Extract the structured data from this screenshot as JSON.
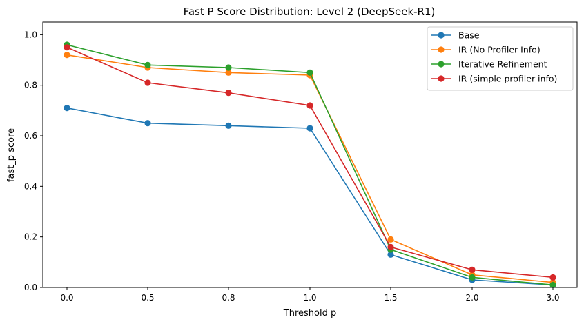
{
  "chart_data": {
    "type": "line",
    "title": "Fast P Score Distribution: Level 2 (DeepSeek-R1)",
    "xlabel": "Threshold p",
    "ylabel": "fast_p score",
    "categories": [
      "0.0",
      "0.5",
      "0.8",
      "1.0",
      "1.5",
      "2.0",
      "3.0"
    ],
    "ylim": [
      0,
      1.05
    ],
    "yticks": [
      "0.0",
      "0.2",
      "0.4",
      "0.6",
      "0.8",
      "1.0"
    ],
    "grid": false,
    "legend_position": "top-right",
    "series": [
      {
        "name": "Base",
        "color": "#1f77b4",
        "values": [
          0.71,
          0.65,
          0.64,
          0.63,
          0.13,
          0.03,
          0.01
        ]
      },
      {
        "name": "IR (No Profiler Info)",
        "color": "#ff7f0e",
        "values": [
          0.92,
          0.87,
          0.85,
          0.84,
          0.19,
          0.05,
          0.02
        ]
      },
      {
        "name": "Iterative Refinement",
        "color": "#2ca02c",
        "values": [
          0.96,
          0.88,
          0.87,
          0.85,
          0.15,
          0.04,
          0.01
        ]
      },
      {
        "name": "IR (simple profiler info)",
        "color": "#d62728",
        "values": [
          0.95,
          0.81,
          0.77,
          0.72,
          0.16,
          0.07,
          0.04
        ]
      }
    ]
  }
}
